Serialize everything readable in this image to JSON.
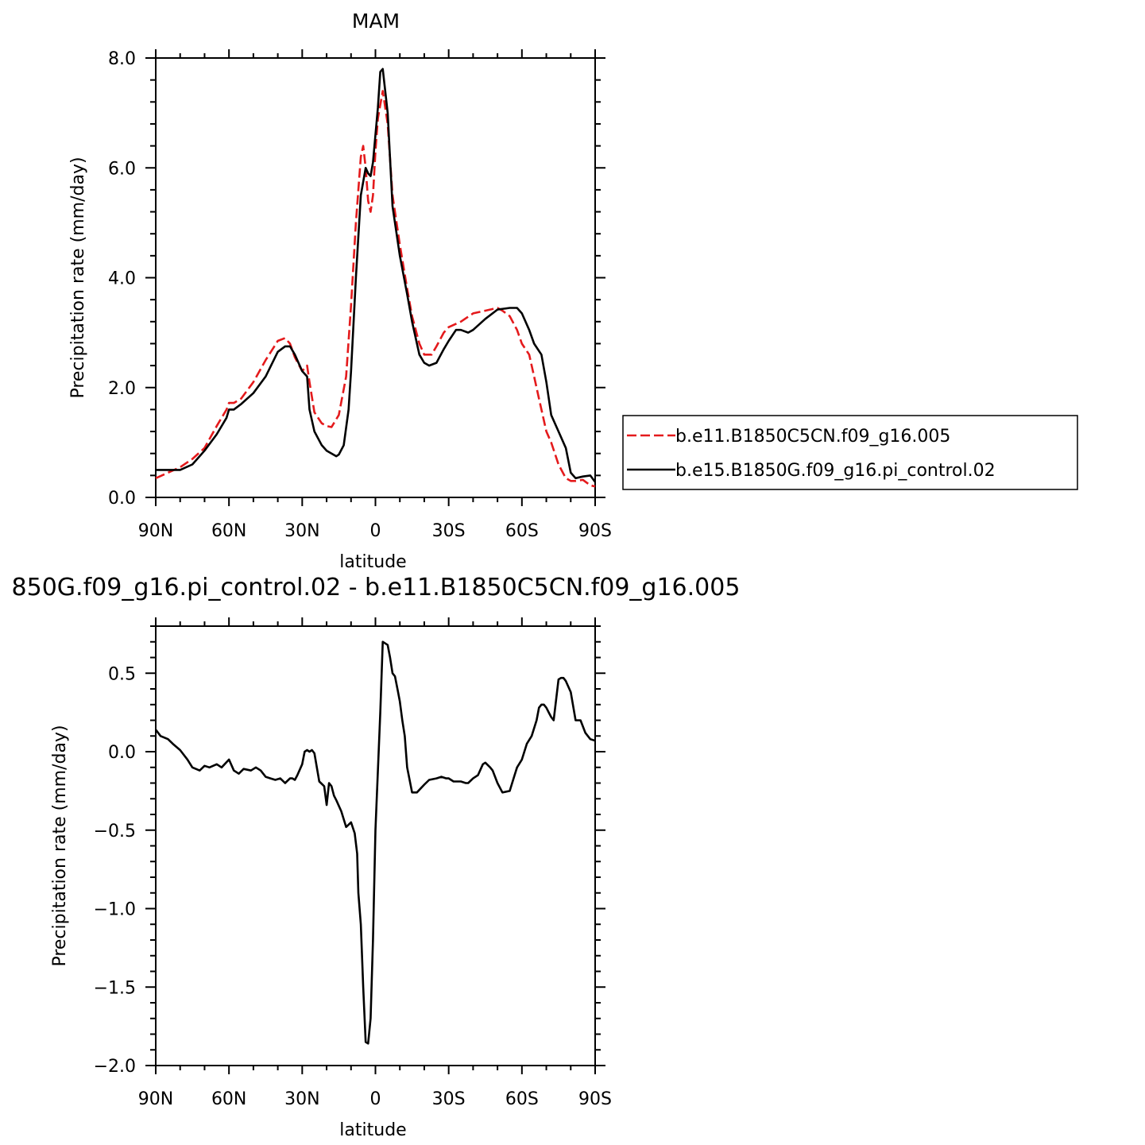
{
  "chart_data": [
    {
      "type": "line",
      "title": "MAM",
      "xlabel": "latitude",
      "ylabel": "Precipitation rate (mm/day)",
      "xlim": [
        90,
        -90
      ],
      "ylim": [
        0,
        8
      ],
      "xticks": [
        90,
        60,
        30,
        0,
        -30,
        -60,
        -90
      ],
      "xtick_labels": [
        "90N",
        "60N",
        "30N",
        "0",
        "30S",
        "60S",
        "90S"
      ],
      "yticks": [
        0,
        2,
        4,
        6,
        8
      ],
      "ytick_labels": [
        "0.0",
        "2.0",
        "4.0",
        "6.0",
        "8.0"
      ],
      "legend_position": "right",
      "series": [
        {
          "name": "b.e11.B1850C5CN.f09_g16.005",
          "color": "#e41a1c",
          "style": "dashed",
          "x": [
            90,
            85,
            80,
            75,
            70,
            65,
            61,
            60,
            58,
            55,
            50,
            45,
            40,
            37,
            35,
            33,
            30,
            28,
            27,
            25,
            22,
            20,
            18,
            15,
            12,
            10,
            8,
            6,
            5,
            4,
            3,
            2,
            1,
            0,
            -1,
            -3,
            -5,
            -7,
            -10,
            -13,
            -15,
            -18,
            -20,
            -23,
            -25,
            -28,
            -30,
            -35,
            -40,
            -45,
            -50,
            -52,
            -55,
            -58,
            -60,
            -63,
            -65,
            -67,
            -70,
            -72,
            -75,
            -78,
            -80,
            -82,
            -85,
            -88,
            -90
          ],
          "y": [
            0.35,
            0.45,
            0.55,
            0.7,
            0.9,
            1.3,
            1.6,
            1.72,
            1.72,
            1.8,
            2.1,
            2.5,
            2.85,
            2.9,
            2.8,
            2.55,
            2.3,
            2.4,
            2.1,
            1.55,
            1.35,
            1.3,
            1.28,
            1.5,
            2.2,
            3.5,
            5.0,
            6.2,
            6.4,
            6.0,
            5.4,
            5.2,
            5.5,
            6.3,
            6.9,
            7.4,
            6.8,
            5.5,
            4.6,
            3.8,
            3.3,
            2.8,
            2.6,
            2.6,
            2.75,
            3.0,
            3.1,
            3.2,
            3.35,
            3.4,
            3.45,
            3.4,
            3.3,
            3.05,
            2.8,
            2.6,
            2.2,
            1.8,
            1.2,
            1.0,
            0.6,
            0.35,
            0.3,
            0.3,
            0.32,
            0.22,
            0.2
          ]
        },
        {
          "name": "b.e15.B1850G.f09_g16.pi_control.02",
          "color": "#000000",
          "style": "solid",
          "x": [
            90,
            85,
            80,
            75,
            70,
            65,
            61,
            60,
            58,
            55,
            50,
            45,
            40,
            37,
            35,
            33,
            30,
            28,
            27,
            25,
            22,
            20,
            18,
            16,
            15,
            13,
            11,
            10,
            8,
            6,
            4,
            3,
            2,
            1,
            0,
            -1,
            -2,
            -3,
            -5,
            -7,
            -10,
            -13,
            -15,
            -18,
            -20,
            -22,
            -25,
            -28,
            -30,
            -33,
            -35,
            -38,
            -40,
            -45,
            -50,
            -55,
            -58,
            -60,
            -63,
            -65,
            -68,
            -70,
            -72,
            -75,
            -78,
            -80,
            -82,
            -85,
            -88,
            -90
          ],
          "y": [
            0.5,
            0.5,
            0.5,
            0.6,
            0.85,
            1.15,
            1.45,
            1.6,
            1.6,
            1.7,
            1.9,
            2.2,
            2.65,
            2.75,
            2.75,
            2.6,
            2.3,
            2.2,
            1.6,
            1.2,
            0.95,
            0.85,
            0.8,
            0.75,
            0.78,
            0.95,
            1.6,
            2.3,
            4.0,
            5.5,
            6.0,
            5.9,
            5.85,
            6.1,
            6.6,
            7.1,
            7.75,
            7.8,
            7.0,
            5.3,
            4.4,
            3.7,
            3.2,
            2.6,
            2.45,
            2.4,
            2.45,
            2.7,
            2.85,
            3.05,
            3.05,
            3.0,
            3.05,
            3.25,
            3.42,
            3.45,
            3.45,
            3.35,
            3.05,
            2.8,
            2.6,
            2.1,
            1.5,
            1.2,
            0.9,
            0.45,
            0.35,
            0.38,
            0.4,
            0.28
          ]
        }
      ]
    },
    {
      "type": "line",
      "title": "850G.f09_g16.pi_control.02 - b.e11.B1850C5CN.f09_g16.005",
      "xlabel": "latitude",
      "ylabel": "Precipitation rate (mm/day)",
      "xlim": [
        90,
        -90
      ],
      "ylim": [
        -2.0,
        0.8
      ],
      "xticks": [
        90,
        60,
        30,
        0,
        -30,
        -60,
        -90
      ],
      "xtick_labels": [
        "90N",
        "60N",
        "30N",
        "0",
        "30S",
        "60S",
        "90S"
      ],
      "yticks": [
        0.5,
        0.0,
        -0.5,
        -1.0,
        -1.5,
        -2.0
      ],
      "ytick_labels": [
        "0.5",
        "0.0",
        "−0.5",
        "−1.0",
        "−1.5",
        "−2.0"
      ],
      "series": [
        {
          "color": "#000000",
          "style": "solid",
          "x": [
            90,
            88,
            85,
            83,
            80,
            77,
            75,
            72,
            70,
            68,
            65,
            63,
            60,
            58,
            56,
            54,
            51,
            49,
            47,
            45,
            43,
            41,
            39,
            37,
            35,
            34,
            33,
            32,
            30,
            29,
            28,
            27,
            26,
            25,
            23,
            21,
            20,
            19,
            18,
            17,
            16,
            14,
            12,
            10,
            8.5,
            7.5,
            7,
            6,
            5,
            4,
            3,
            2,
            1,
            0,
            -2,
            -3,
            -5,
            -6,
            -7,
            -8,
            -9,
            -10,
            -11,
            -12,
            -13,
            -15,
            -17,
            -20,
            -22,
            -25,
            -27,
            -29,
            -30,
            -32,
            -35,
            -37,
            -38,
            -40,
            -42,
            -44,
            -45,
            -47,
            -48,
            -50,
            -52,
            -55,
            -57,
            -58,
            -60,
            -62,
            -64,
            -66,
            -67,
            -68,
            -69,
            -70,
            -71,
            -72,
            -73,
            -75,
            -76,
            -77,
            -78,
            -80,
            -82,
            -84,
            -86,
            -88,
            -90
          ],
          "y": [
            0.14,
            0.1,
            0.08,
            0.05,
            0.01,
            -0.05,
            -0.1,
            -0.12,
            -0.09,
            -0.1,
            -0.08,
            -0.1,
            -0.05,
            -0.12,
            -0.14,
            -0.11,
            -0.12,
            -0.1,
            -0.12,
            -0.16,
            -0.17,
            -0.18,
            -0.17,
            -0.2,
            -0.17,
            -0.17,
            -0.18,
            -0.15,
            -0.08,
            0.0,
            0.01,
            0.0,
            0.01,
            -0.01,
            -0.19,
            -0.22,
            -0.34,
            -0.2,
            -0.22,
            -0.28,
            -0.31,
            -0.38,
            -0.48,
            -0.45,
            -0.52,
            -0.65,
            -0.9,
            -1.1,
            -1.5,
            -1.85,
            -1.86,
            -1.7,
            -1.2,
            -0.5,
            0.25,
            0.7,
            0.68,
            0.6,
            0.5,
            0.48,
            0.4,
            0.32,
            0.2,
            0.1,
            -0.1,
            -0.26,
            -0.26,
            -0.21,
            -0.18,
            -0.17,
            -0.16,
            -0.17,
            -0.17,
            -0.19,
            -0.19,
            -0.2,
            -0.2,
            -0.17,
            -0.15,
            -0.08,
            -0.07,
            -0.1,
            -0.12,
            -0.2,
            -0.26,
            -0.25,
            -0.15,
            -0.1,
            -0.05,
            0.05,
            0.1,
            0.2,
            0.28,
            0.3,
            0.3,
            0.28,
            0.25,
            0.22,
            0.2,
            0.46,
            0.47,
            0.47,
            0.45,
            0.38,
            0.2,
            0.2,
            0.12,
            0.08,
            0.07
          ]
        }
      ]
    }
  ]
}
